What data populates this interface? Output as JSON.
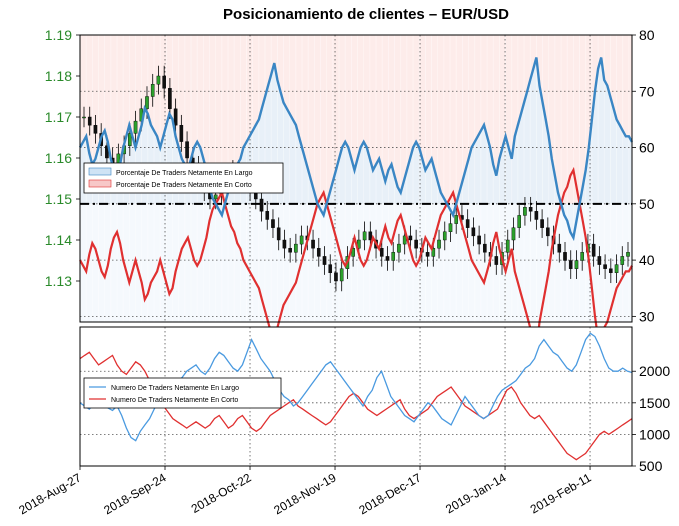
{
  "chart_data": [
    {
      "type": "line",
      "title": "Posicionamiento de clientes – EUR/USD",
      "left_axis": {
        "ylim": [
          1.12,
          1.19
        ],
        "ticks": [
          "1.13",
          "1.14",
          "1.15",
          "1.16",
          "1.17",
          "1.18",
          "1.19"
        ],
        "color": "#2a8a2a"
      },
      "right_axis": {
        "ylim": [
          29,
          80
        ],
        "ticks": [
          "30",
          "40",
          "50",
          "60",
          "70",
          "80"
        ]
      },
      "reference_line": 50,
      "grid": true,
      "legend": {
        "placement": "center-left",
        "entries": [
          "Porcentaje De Traders Netamente En Largo",
          "Porcentaje De Traders Netamente En Corto"
        ]
      },
      "series": [
        {
          "name": "Porcentaje De Traders Netamente En Largo",
          "color": "#3a86c4",
          "values": [
            60,
            61,
            62,
            59,
            57,
            58,
            60,
            62,
            63,
            61,
            58,
            56,
            55,
            57,
            60,
            62,
            64,
            62,
            60,
            62,
            64,
            67,
            66,
            64,
            63,
            62,
            60,
            62,
            64,
            66,
            65,
            62,
            60,
            58,
            57,
            56,
            58,
            60,
            61,
            60,
            58,
            56,
            53,
            51,
            50,
            49,
            48,
            50,
            52,
            54,
            55,
            57,
            58,
            60,
            61,
            62,
            63,
            64,
            65,
            67,
            69,
            71,
            73,
            75,
            72,
            70,
            68,
            67,
            66,
            65,
            64,
            62,
            60,
            58,
            56,
            54,
            52,
            50,
            49,
            48,
            50,
            52,
            54,
            56,
            58,
            60,
            61,
            60,
            58,
            56,
            58,
            60,
            61,
            60,
            58,
            56,
            57,
            58,
            56,
            54,
            56,
            57,
            55,
            53,
            52,
            54,
            56,
            58,
            60,
            61,
            60,
            58,
            56,
            57,
            58,
            56,
            54,
            52,
            51,
            50,
            49,
            48,
            50,
            52,
            54,
            56,
            58,
            60,
            61,
            62,
            63,
            64,
            62,
            60,
            57,
            55,
            58,
            60,
            62,
            60,
            58,
            62,
            64,
            66,
            68,
            70,
            72,
            74,
            76,
            71,
            68,
            65,
            62,
            58,
            55,
            52,
            50,
            48,
            47,
            45,
            44,
            47,
            50,
            53,
            56,
            60,
            65,
            70,
            74,
            76,
            72,
            71,
            69,
            67,
            65,
            64,
            63,
            62,
            62,
            61
          ]
        },
        {
          "name": "Porcentaje De Traders Netamente En Corto",
          "color": "#e03030",
          "values": [
            40,
            39,
            38,
            41,
            43,
            42,
            40,
            38,
            37,
            39,
            42,
            44,
            45,
            43,
            40,
            38,
            36,
            38,
            40,
            38,
            36,
            33,
            34,
            36,
            37,
            38,
            40,
            38,
            36,
            34,
            35,
            38,
            40,
            42,
            43,
            44,
            42,
            40,
            39,
            40,
            42,
            44,
            47,
            49,
            50,
            51,
            52,
            50,
            48,
            46,
            45,
            43,
            42,
            40,
            39,
            38,
            37,
            36,
            35,
            33,
            31,
            29,
            27,
            25,
            28,
            30,
            32,
            33,
            34,
            35,
            36,
            38,
            40,
            42,
            44,
            46,
            48,
            50,
            51,
            52,
            50,
            48,
            46,
            44,
            42,
            40,
            39,
            40,
            42,
            44,
            42,
            40,
            39,
            40,
            42,
            44,
            43,
            42,
            44,
            46,
            44,
            43,
            45,
            47,
            48,
            46,
            44,
            42,
            40,
            39,
            40,
            42,
            44,
            43,
            42,
            44,
            46,
            48,
            49,
            50,
            51,
            52,
            50,
            48,
            46,
            44,
            42,
            40,
            39,
            38,
            37,
            36,
            38,
            40,
            43,
            45,
            42,
            40,
            38,
            40,
            42,
            38,
            36,
            34,
            32,
            30,
            28,
            26,
            24,
            29,
            32,
            35,
            38,
            42,
            45,
            48,
            50,
            52,
            53,
            55,
            56,
            53,
            50,
            47,
            44,
            40,
            35,
            30,
            26,
            24,
            28,
            29,
            31,
            33,
            35,
            36,
            37,
            38,
            38,
            39
          ]
        },
        {
          "name": "EUR/USD",
          "type": "candlestick-close",
          "color": "#000000",
          "values": [
            1.17,
            1.168,
            1.166,
            1.163,
            1.16,
            1.158,
            1.161,
            1.163,
            1.166,
            1.169,
            1.172,
            1.175,
            1.178,
            1.18,
            1.177,
            1.172,
            1.168,
            1.164,
            1.16,
            1.158,
            1.155,
            1.152,
            1.15,
            1.151,
            1.153,
            1.155,
            1.157,
            1.156,
            1.154,
            1.152,
            1.15,
            1.147,
            1.145,
            1.143,
            1.14,
            1.138,
            1.137,
            1.139,
            1.141,
            1.14,
            1.138,
            1.136,
            1.134,
            1.132,
            1.13,
            1.133,
            1.136,
            1.138,
            1.14,
            1.142,
            1.14,
            1.138,
            1.136,
            1.135,
            1.137,
            1.139,
            1.141,
            1.14,
            1.138,
            1.137,
            1.136,
            1.138,
            1.14,
            1.142,
            1.144,
            1.146,
            1.145,
            1.143,
            1.141,
            1.139,
            1.137,
            1.136,
            1.134,
            1.137,
            1.14,
            1.143,
            1.146,
            1.148,
            1.147,
            1.145,
            1.143,
            1.141,
            1.139,
            1.137,
            1.135,
            1.133,
            1.135,
            1.137,
            1.139,
            1.136,
            1.134,
            1.133,
            1.132,
            1.134,
            1.136,
            1.137
          ]
        }
      ]
    },
    {
      "type": "line",
      "right_axis": {
        "ylim": [
          500,
          2700
        ],
        "ticks": [
          "500",
          "1000",
          "1500",
          "2000"
        ]
      },
      "grid": true,
      "legend": {
        "placement": "center-left",
        "entries": [
          "Numero De Traders Netamente En Largo",
          "Numero De Traders Netamente En Corto"
        ]
      },
      "x_ticks": [
        "2018-Aug-27",
        "2018-Sep-24",
        "2018-Oct-22",
        "2018-Nov-19",
        "2018-Dec-17",
        "2019-Jan-14",
        "2019-Feb-11"
      ],
      "series": [
        {
          "name": "Numero De Traders Netamente En Largo",
          "color": "#4a9ae0",
          "values": [
            1500,
            1450,
            1400,
            1480,
            1550,
            1500,
            1420,
            1380,
            1450,
            1300,
            1100,
            950,
            900,
            1050,
            1150,
            1250,
            1400,
            1550,
            1650,
            1700,
            1750,
            1820,
            1900,
            2000,
            2050,
            2100,
            2000,
            1950,
            2050,
            2200,
            2300,
            2250,
            2150,
            2050,
            2000,
            2100,
            2300,
            2500,
            2350,
            2200,
            2100,
            2000,
            1850,
            1700,
            1600,
            1550,
            1450,
            1500,
            1600,
            1700,
            1800,
            1900,
            2000,
            2100,
            2150,
            2050,
            1950,
            1850,
            1750,
            1650,
            1550,
            1450,
            1600,
            1700,
            1900,
            2000,
            1800,
            1600,
            1500,
            1400,
            1300,
            1250,
            1200,
            1300,
            1400,
            1500,
            1450,
            1350,
            1250,
            1200,
            1150,
            1300,
            1450,
            1600,
            1500,
            1400,
            1300,
            1250,
            1300,
            1450,
            1600,
            1700,
            1750,
            1800,
            1850,
            1950,
            2050,
            2100,
            2200,
            2400,
            2500,
            2400,
            2300,
            2250,
            2150,
            2050,
            2000,
            2100,
            2300,
            2500,
            2600,
            2550,
            2400,
            2200,
            2050,
            2000,
            2000,
            2050,
            2000,
            1980
          ]
        },
        {
          "name": "Numero De Traders Netamente En Corto",
          "color": "#e03030",
          "values": [
            2200,
            2250,
            2300,
            2200,
            2100,
            2150,
            2200,
            2250,
            2100,
            2000,
            1950,
            2050,
            2150,
            2100,
            2000,
            1850,
            1700,
            1550,
            1450,
            1350,
            1250,
            1200,
            1150,
            1100,
            1150,
            1200,
            1150,
            1100,
            1150,
            1250,
            1300,
            1200,
            1100,
            1150,
            1250,
            1300,
            1200,
            1100,
            1050,
            1100,
            1200,
            1300,
            1350,
            1400,
            1450,
            1500,
            1550,
            1450,
            1400,
            1350,
            1300,
            1250,
            1200,
            1150,
            1200,
            1300,
            1400,
            1500,
            1600,
            1650,
            1600,
            1500,
            1400,
            1350,
            1300,
            1350,
            1400,
            1450,
            1500,
            1550,
            1400,
            1300,
            1250,
            1300,
            1350,
            1400,
            1500,
            1600,
            1650,
            1700,
            1750,
            1650,
            1550,
            1450,
            1400,
            1350,
            1300,
            1250,
            1300,
            1350,
            1400,
            1550,
            1700,
            1750,
            1650,
            1500,
            1400,
            1300,
            1250,
            1300,
            1200,
            1100,
            1000,
            900,
            800,
            700,
            650,
            600,
            650,
            700,
            800,
            900,
            1000,
            1050,
            1000,
            1050,
            1100,
            1150,
            1200,
            1250
          ]
        }
      ]
    }
  ]
}
